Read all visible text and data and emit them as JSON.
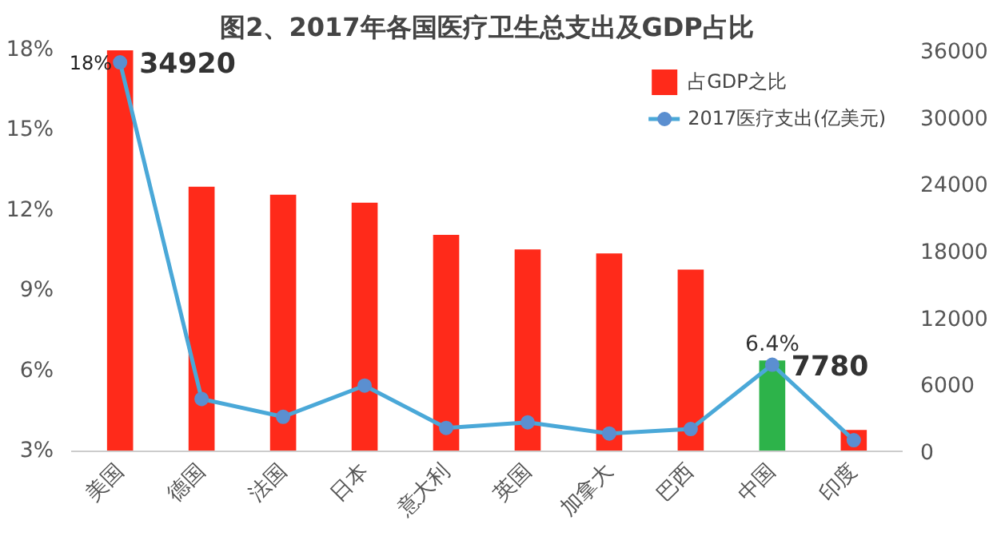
{
  "chart_data": {
    "type": "bar",
    "title": "图2、2017年各国医疗卫生总支出及GDP占比",
    "categories": [
      "美国",
      "德国",
      "法国",
      "日本",
      "意大利",
      "英国",
      "加拿大",
      "巴西",
      "中国",
      "印度"
    ],
    "series": [
      {
        "name": "占GDP之比",
        "colors": [
          "#ff2a1a",
          "#ff2a1a",
          "#ff2a1a",
          "#ff2a1a",
          "#ff2a1a",
          "#ff2a1a",
          "#ff2a1a",
          "#ff2a1a",
          "#2db34a",
          "#ff2a1a"
        ],
        "values": [
          18,
          12.9,
          12.6,
          12.3,
          11.1,
          10.55,
          10.4,
          9.8,
          6.4,
          3.8
        ],
        "value_labels": [
          "18%",
          null,
          null,
          null,
          null,
          null,
          null,
          null,
          "6.4%",
          null
        ]
      },
      {
        "name": "2017医疗支出(亿美元)",
        "type": "line",
        "axis": "y2",
        "color": "#4aa8d8",
        "marker": "circle",
        "values": [
          34920,
          4700,
          3100,
          5900,
          2100,
          2600,
          1600,
          2000,
          7780,
          1000
        ],
        "value_labels": [
          "34920",
          null,
          null,
          null,
          null,
          null,
          null,
          null,
          "7780",
          null
        ]
      }
    ],
    "ylim": [
      3,
      18
    ],
    "yticks": [
      {
        "value": 3,
        "label": "3%"
      },
      {
        "value": 6,
        "label": "6%"
      },
      {
        "value": 9,
        "label": "9%"
      },
      {
        "value": 12,
        "label": "12%"
      },
      {
        "value": 15,
        "label": "15%"
      },
      {
        "value": 18,
        "label": "18%"
      }
    ],
    "y2lim": [
      0,
      36000
    ],
    "y2ticks": [
      0,
      6000,
      12000,
      18000,
      24000,
      30000,
      36000
    ],
    "grid": false,
    "legend": "top right"
  }
}
